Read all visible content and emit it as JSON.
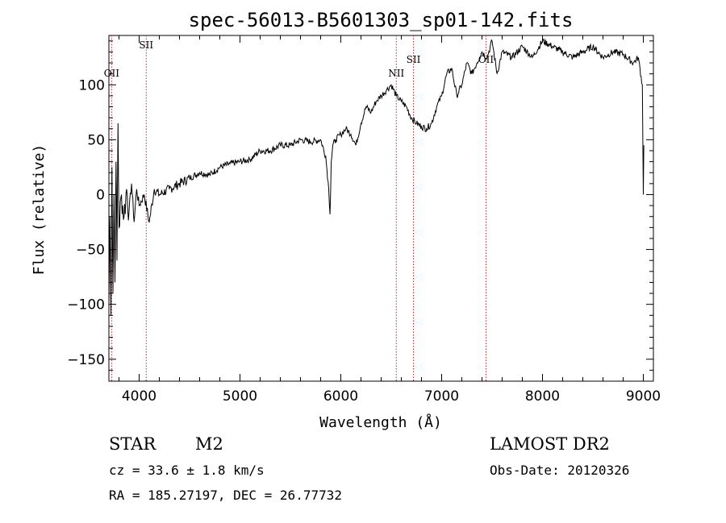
{
  "chart_data": {
    "type": "line",
    "title": "spec-56013-B5601303_sp01-142.fits",
    "xlabel": "Wavelength (Å)",
    "ylabel": "Flux (relative)",
    "xlim": [
      3700,
      9100
    ],
    "ylim": [
      -170,
      145
    ],
    "xticks": [
      4000,
      5000,
      6000,
      7000,
      8000,
      9000
    ],
    "yticks": [
      -150,
      -100,
      -50,
      0,
      50,
      100
    ],
    "grid": false,
    "series": [
      {
        "x": [
          3700,
          3710,
          3720,
          3730,
          3740,
          3750,
          3760,
          3770,
          3780,
          3790,
          3800,
          3825,
          3850,
          3875,
          3900,
          3925,
          3950,
          3975,
          4000,
          4050,
          4100,
          4150,
          4200,
          4300,
          4400,
          4500,
          4600,
          4700,
          4800,
          4900,
          5000,
          5100,
          5200,
          5300,
          5400,
          5500,
          5600,
          5700,
          5800,
          5850,
          5880,
          5893,
          5905,
          5920,
          5950,
          6000,
          6050,
          6100,
          6150,
          6200,
          6250,
          6300,
          6350,
          6400,
          6450,
          6500,
          6550,
          6600,
          6650,
          6700,
          6750,
          6800,
          6850,
          6900,
          6950,
          7000,
          7050,
          7100,
          7150,
          7200,
          7250,
          7300,
          7350,
          7400,
          7450,
          7500,
          7550,
          7600,
          7700,
          7800,
          7900,
          8000,
          8100,
          8200,
          8300,
          8400,
          8500,
          8600,
          8700,
          8800,
          8900,
          8950,
          8990,
          9000,
          9005
        ],
        "y": [
          -100,
          -20,
          -110,
          25,
          -90,
          0,
          -80,
          30,
          -60,
          65,
          -30,
          0,
          -20,
          5,
          -15,
          10,
          -25,
          5,
          -10,
          0,
          -25,
          5,
          0,
          5,
          10,
          15,
          20,
          18,
          25,
          28,
          30,
          32,
          40,
          40,
          45,
          45,
          50,
          48,
          50,
          35,
          5,
          -18,
          30,
          45,
          50,
          55,
          60,
          55,
          45,
          65,
          80,
          75,
          85,
          90,
          95,
          100,
          90,
          85,
          80,
          70,
          65,
          62,
          60,
          65,
          80,
          90,
          110,
          115,
          90,
          100,
          120,
          110,
          120,
          130,
          125,
          140,
          110,
          130,
          125,
          135,
          125,
          140,
          135,
          130,
          125,
          130,
          135,
          125,
          130,
          128,
          120,
          125,
          100,
          0,
          45
        ]
      }
    ],
    "lines": [
      {
        "label": "OII",
        "x": 3727
      },
      {
        "label": "SII",
        "x": 4070
      },
      {
        "label": "NII",
        "x": 6550
      },
      {
        "label": "SII",
        "x": 6720
      },
      {
        "label": "OII",
        "x": 7440
      }
    ]
  },
  "info": {
    "class": "STAR",
    "subclass": "M2",
    "survey": "LAMOST DR2",
    "cz": "cz = 33.6 ± 1.8 km/s",
    "obsdate": "Obs-Date: 20120326",
    "radec": "RA = 185.27197, DEC =  26.77732"
  }
}
